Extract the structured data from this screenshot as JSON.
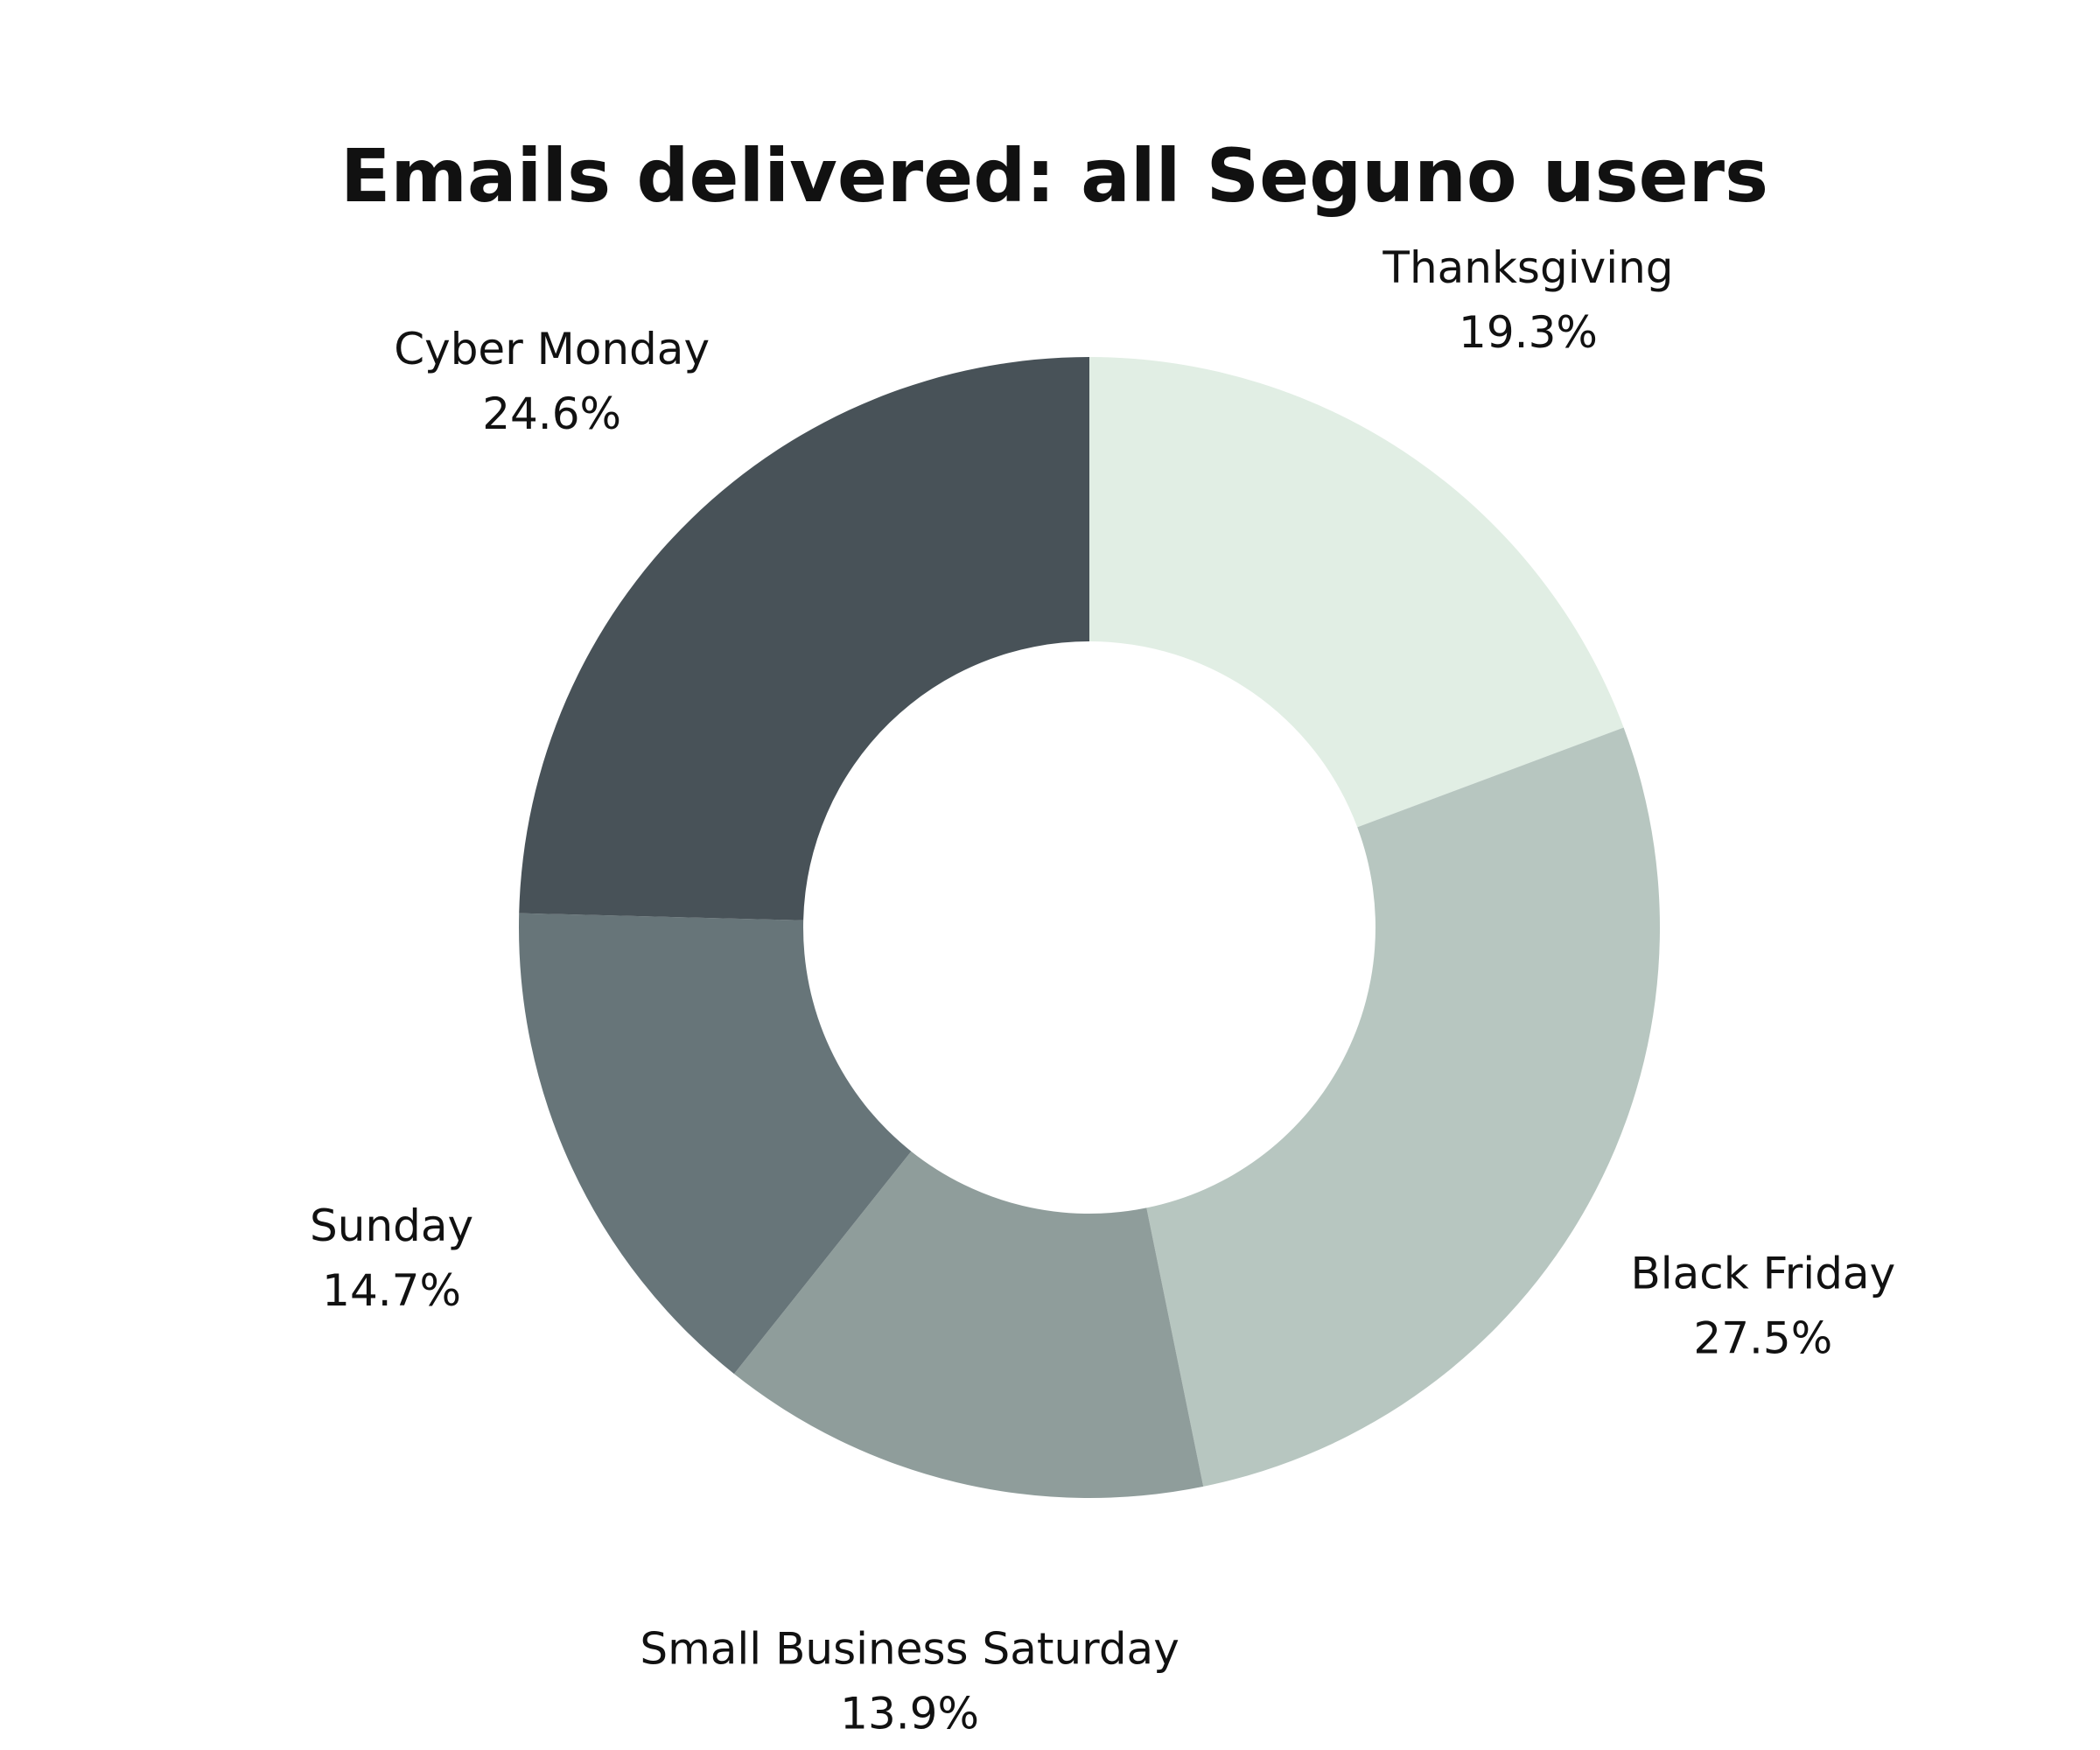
{
  "chart_data": {
    "type": "pie",
    "variant": "donut",
    "title": "Emails delivered: all Seguno users",
    "start_angle_deg": 0,
    "direction": "clockwise",
    "slices": [
      {
        "label": "Thanksgiving",
        "value": 19.3,
        "value_label": "19.3%",
        "color": "#e1eee4"
      },
      {
        "label": "Black Friday",
        "value": 27.5,
        "value_label": "27.5%",
        "color": "#b7c6c0"
      },
      {
        "label": "Small Business Saturday",
        "value": 13.9,
        "value_label": "13.9%",
        "color": "#8f9d9b"
      },
      {
        "label": "Sunday",
        "value": 14.7,
        "value_label": "14.7%",
        "color": "#677579"
      },
      {
        "label": "Cyber Monday",
        "value": 24.6,
        "value_label": "24.6%",
        "color": "#485258"
      }
    ]
  }
}
